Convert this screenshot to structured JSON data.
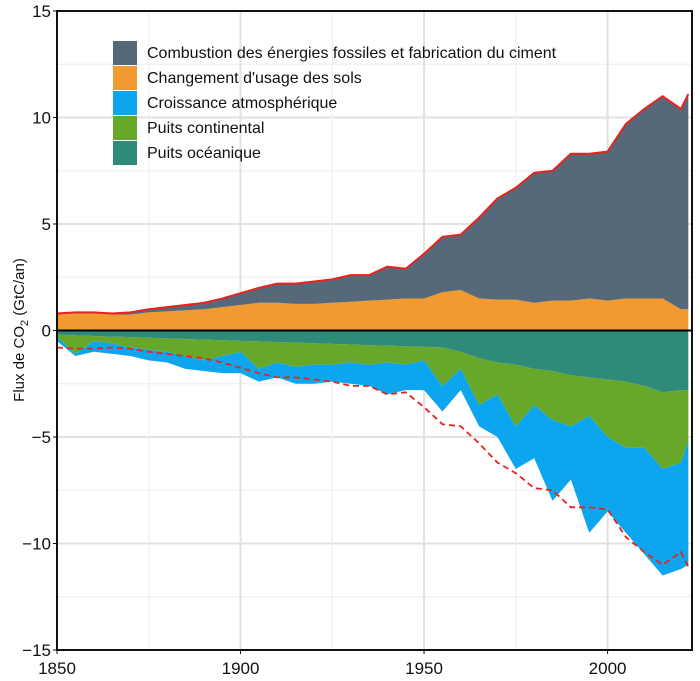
{
  "chart_data": {
    "type": "area",
    "title": "",
    "xlabel": "",
    "ylabel": "Flux de CO",
    "ylabel_sub": "2",
    "ylabel_unit": " (GtC/an)",
    "xlim": [
      1850,
      2023
    ],
    "ylim": [
      -15,
      15
    ],
    "xticks": [
      1850,
      1900,
      1950,
      2000
    ],
    "yticks": [
      -15,
      -10,
      -5,
      0,
      5,
      10,
      15
    ],
    "ytick_labels": [
      "−15",
      "−10",
      "−5",
      "0",
      "5",
      "10",
      "15"
    ],
    "grid": true,
    "legend_position": "top-left",
    "x": [
      1850,
      1855,
      1860,
      1865,
      1870,
      1875,
      1880,
      1885,
      1890,
      1895,
      1900,
      1905,
      1910,
      1915,
      1920,
      1925,
      1930,
      1935,
      1940,
      1945,
      1950,
      1955,
      1960,
      1965,
      1970,
      1975,
      1980,
      1985,
      1990,
      1995,
      2000,
      2005,
      2010,
      2015,
      2020,
      2022
    ],
    "series": [
      {
        "name": "Combustion des énergies fossiles et fabrication du ciment",
        "color": "#56697a",
        "values": [
          0.05,
          0.05,
          0.05,
          0.05,
          0.1,
          0.15,
          0.2,
          0.25,
          0.3,
          0.4,
          0.55,
          0.7,
          0.9,
          0.95,
          1.05,
          1.1,
          1.25,
          1.2,
          1.55,
          1.4,
          2.1,
          2.6,
          2.6,
          3.8,
          4.75,
          5.25,
          6.1,
          6.1,
          6.9,
          6.8,
          7.0,
          8.2,
          8.9,
          9.5,
          9.4,
          10.1
        ]
      },
      {
        "name": "Changement d'usage des sols",
        "color": "#f09a2f",
        "values": [
          0.75,
          0.8,
          0.8,
          0.75,
          0.75,
          0.85,
          0.9,
          0.95,
          1.0,
          1.1,
          1.2,
          1.3,
          1.3,
          1.25,
          1.25,
          1.3,
          1.35,
          1.4,
          1.45,
          1.5,
          1.5,
          1.8,
          1.9,
          1.5,
          1.45,
          1.45,
          1.3,
          1.4,
          1.4,
          1.5,
          1.4,
          1.5,
          1.5,
          1.5,
          1.0,
          1.0
        ]
      },
      {
        "name": "Croissance atmosphérique",
        "color": "#0ea5ef",
        "values": [
          -0.2,
          -0.1,
          -0.5,
          -0.5,
          -0.4,
          -0.5,
          -0.5,
          -0.6,
          -0.5,
          -0.8,
          -1.0,
          -0.6,
          -0.7,
          -0.8,
          -0.9,
          -0.8,
          -1.0,
          -1.0,
          -1.5,
          -1.2,
          -1.4,
          -1.2,
          -1.0,
          -1.0,
          -2.0,
          -2.0,
          -2.5,
          -3.8,
          -2.5,
          -5.5,
          -3.5,
          -4.0,
          -5.0,
          -5.0,
          -5.0,
          -5.8
        ]
      },
      {
        "name": "Puits continental",
        "color": "#67a82a",
        "values": [
          -0.1,
          -0.87,
          -0.24,
          -0.31,
          -0.49,
          -0.56,
          -0.63,
          -0.8,
          -0.97,
          -0.74,
          -0.51,
          -1.29,
          -0.96,
          -1.13,
          -1.0,
          -0.97,
          -0.84,
          -0.91,
          -0.79,
          -0.86,
          -0.63,
          -1.8,
          -0.8,
          -2.2,
          -1.5,
          -2.9,
          -1.7,
          -2.3,
          -2.4,
          -1.8,
          -2.7,
          -3.1,
          -2.9,
          -3.6,
          -3.4,
          -2.4
        ]
      },
      {
        "name": "Puits océanique",
        "color": "#2f8b79",
        "values": [
          -0.2,
          -0.23,
          -0.26,
          -0.29,
          -0.31,
          -0.34,
          -0.37,
          -0.4,
          -0.43,
          -0.46,
          -0.49,
          -0.51,
          -0.54,
          -0.57,
          -0.6,
          -0.63,
          -0.66,
          -0.69,
          -0.71,
          -0.74,
          -0.77,
          -0.8,
          -1.0,
          -1.3,
          -1.5,
          -1.6,
          -1.8,
          -1.9,
          -2.1,
          -2.2,
          -2.3,
          -2.4,
          -2.6,
          -2.9,
          -2.8,
          -2.8
        ]
      }
    ],
    "emissions_line_color": "#e8231c"
  }
}
